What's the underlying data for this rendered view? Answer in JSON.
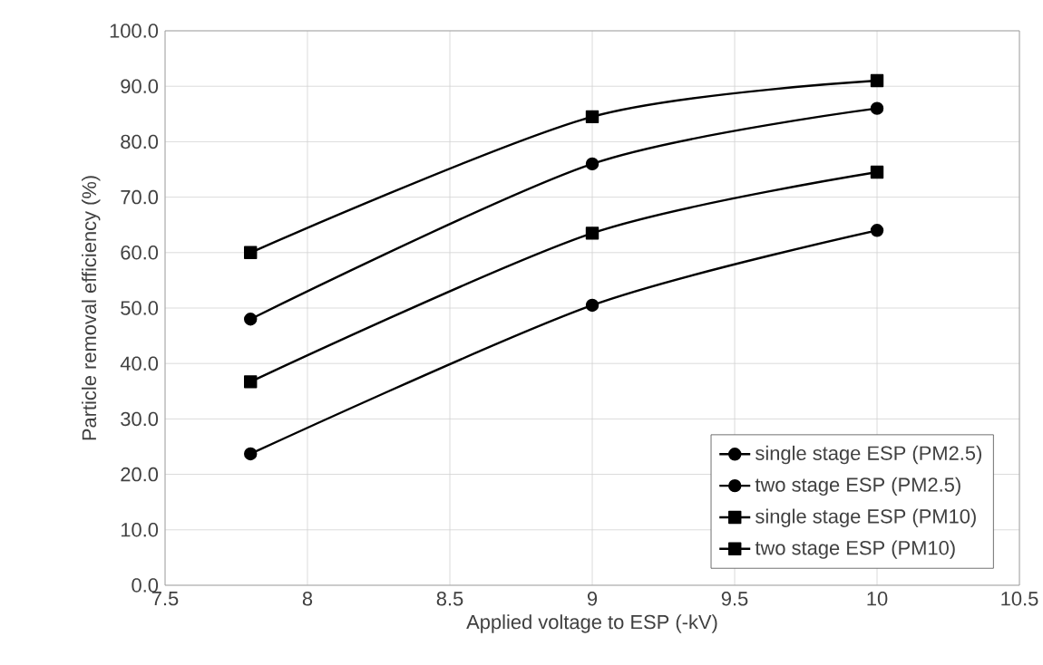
{
  "chart_data": {
    "type": "line",
    "xlabel": "Applied voltage to ESP (-kV)",
    "ylabel": "Particle removal efficiency (%)",
    "x": [
      7.8,
      9,
      10
    ],
    "series": [
      {
        "name": "single stage ESP (PM2.5)",
        "color": "#000000",
        "marker": "circle",
        "values": [
          23.7,
          50.5,
          64.0
        ]
      },
      {
        "name": "two stage ESP (PM2.5)",
        "color": "#000000",
        "marker": "circle",
        "values": [
          48.0,
          76.0,
          86.0
        ]
      },
      {
        "name": "single stage ESP (PM10)",
        "color": "#000000",
        "marker": "square",
        "values": [
          36.7,
          63.5,
          74.5
        ]
      },
      {
        "name": "two stage ESP (PM10)",
        "color": "#000000",
        "marker": "square",
        "values": [
          60.0,
          84.5,
          91.0
        ]
      }
    ],
    "xlim": [
      7.5,
      10.5
    ],
    "xticks": [
      7.5,
      8,
      8.5,
      9,
      9.5,
      10,
      10.5
    ],
    "ylim": [
      0,
      100
    ],
    "yticks": [
      {
        "value": 0,
        "label": "0.0"
      },
      {
        "value": 10,
        "label": "10.0"
      },
      {
        "value": 20,
        "label": "20.0"
      },
      {
        "value": 30,
        "label": "30.0"
      },
      {
        "value": 40,
        "label": "40.0"
      },
      {
        "value": 50,
        "label": "50.0"
      },
      {
        "value": 60,
        "label": "60.0"
      },
      {
        "value": 70,
        "label": "70.0"
      },
      {
        "value": 80,
        "label": "80.0"
      },
      {
        "value": 90,
        "label": "90.0"
      },
      {
        "value": 100,
        "label": "100.0"
      }
    ],
    "grid": true,
    "legend": "bottom right",
    "line_style": "solid"
  }
}
